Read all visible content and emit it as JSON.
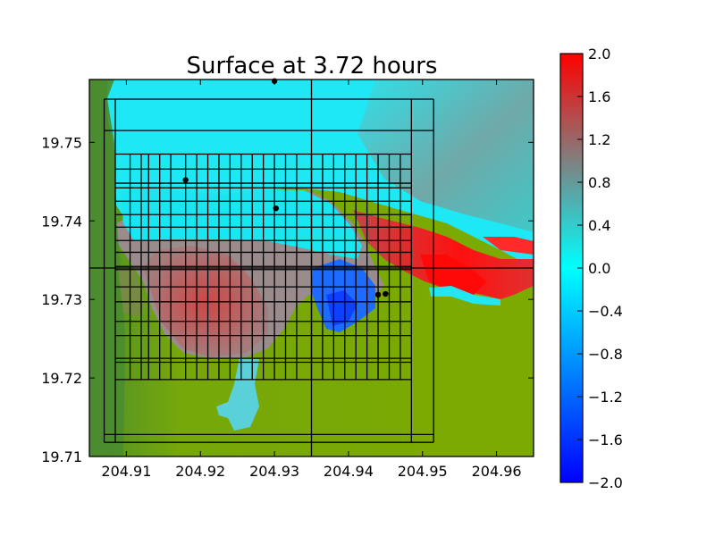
{
  "chart_data": {
    "type": "heatmap",
    "title": "Surface at 3.72 hours",
    "xlabel": "",
    "ylabel": "",
    "xlim": [
      204.905,
      204.965
    ],
    "ylim": [
      19.71,
      19.758
    ],
    "x_ticks": [
      204.91,
      204.92,
      204.93,
      204.94,
      204.95,
      204.96
    ],
    "x_tick_labels": [
      "204.91",
      "204.92",
      "204.93",
      "204.94",
      "204.95",
      "204.96"
    ],
    "y_ticks": [
      19.71,
      19.72,
      19.73,
      19.74,
      19.75
    ],
    "y_tick_labels": [
      "19.71",
      "19.72",
      "19.73",
      "19.74",
      "19.75"
    ],
    "colorbar": {
      "min": -2.0,
      "max": 2.0,
      "ticks": [
        2.0,
        1.6,
        1.2,
        0.8,
        0.4,
        0.0,
        -0.4,
        -0.8,
        -1.2,
        -1.6,
        -2.0
      ],
      "tick_labels": [
        "2.0",
        "1.6",
        "1.2",
        "0.8",
        "0.4",
        "0.0",
        "−0.4",
        "−0.8",
        "−1.2",
        "−1.6",
        "−2.0"
      ],
      "colors": [
        "#0000ff",
        "#00ffff",
        "#808080",
        "#ff0000"
      ]
    },
    "colors": {
      "land": "#7caa00",
      "land_dark": "#5a9a1a",
      "water_cyan": "#00f0ff",
      "water_teal": "#3ad0d0",
      "deep_blue": "#1060ff",
      "surge_red": "#ff1a1a",
      "surge_grey": "#b06060",
      "grid": "#000000"
    },
    "grid_lines_x": [
      204.907,
      204.9085,
      204.9105,
      204.912,
      204.913,
      204.9145,
      204.916,
      204.918,
      204.9195,
      204.921,
      204.9225,
      204.924,
      204.9255,
      204.927,
      204.9285,
      204.93,
      204.9315,
      204.933,
      204.935,
      204.9365,
      204.938,
      204.9395,
      204.941,
      204.9425,
      204.944,
      204.9455,
      204.947,
      204.9485,
      204.9515
    ],
    "grid_lines_y": [
      19.7118,
      19.7128,
      19.7198,
      19.722,
      19.7225,
      19.7254,
      19.7272,
      19.7297,
      19.7316,
      19.7338,
      19.7342,
      19.736,
      19.7375,
      19.7392,
      19.7408,
      19.7425,
      19.7442,
      19.7448,
      19.7466,
      19.7485,
      19.7515,
      19.7555
    ],
    "long_lines": {
      "x": 204.935,
      "y": 19.734
    },
    "gauges": [
      {
        "x": 204.93,
        "y": 19.7578
      },
      {
        "x": 204.918,
        "y": 19.7452
      },
      {
        "x": 204.9302,
        "y": 19.7416
      },
      {
        "x": 204.944,
        "y": 19.7306
      },
      {
        "x": 204.945,
        "y": 19.7307
      }
    ]
  }
}
